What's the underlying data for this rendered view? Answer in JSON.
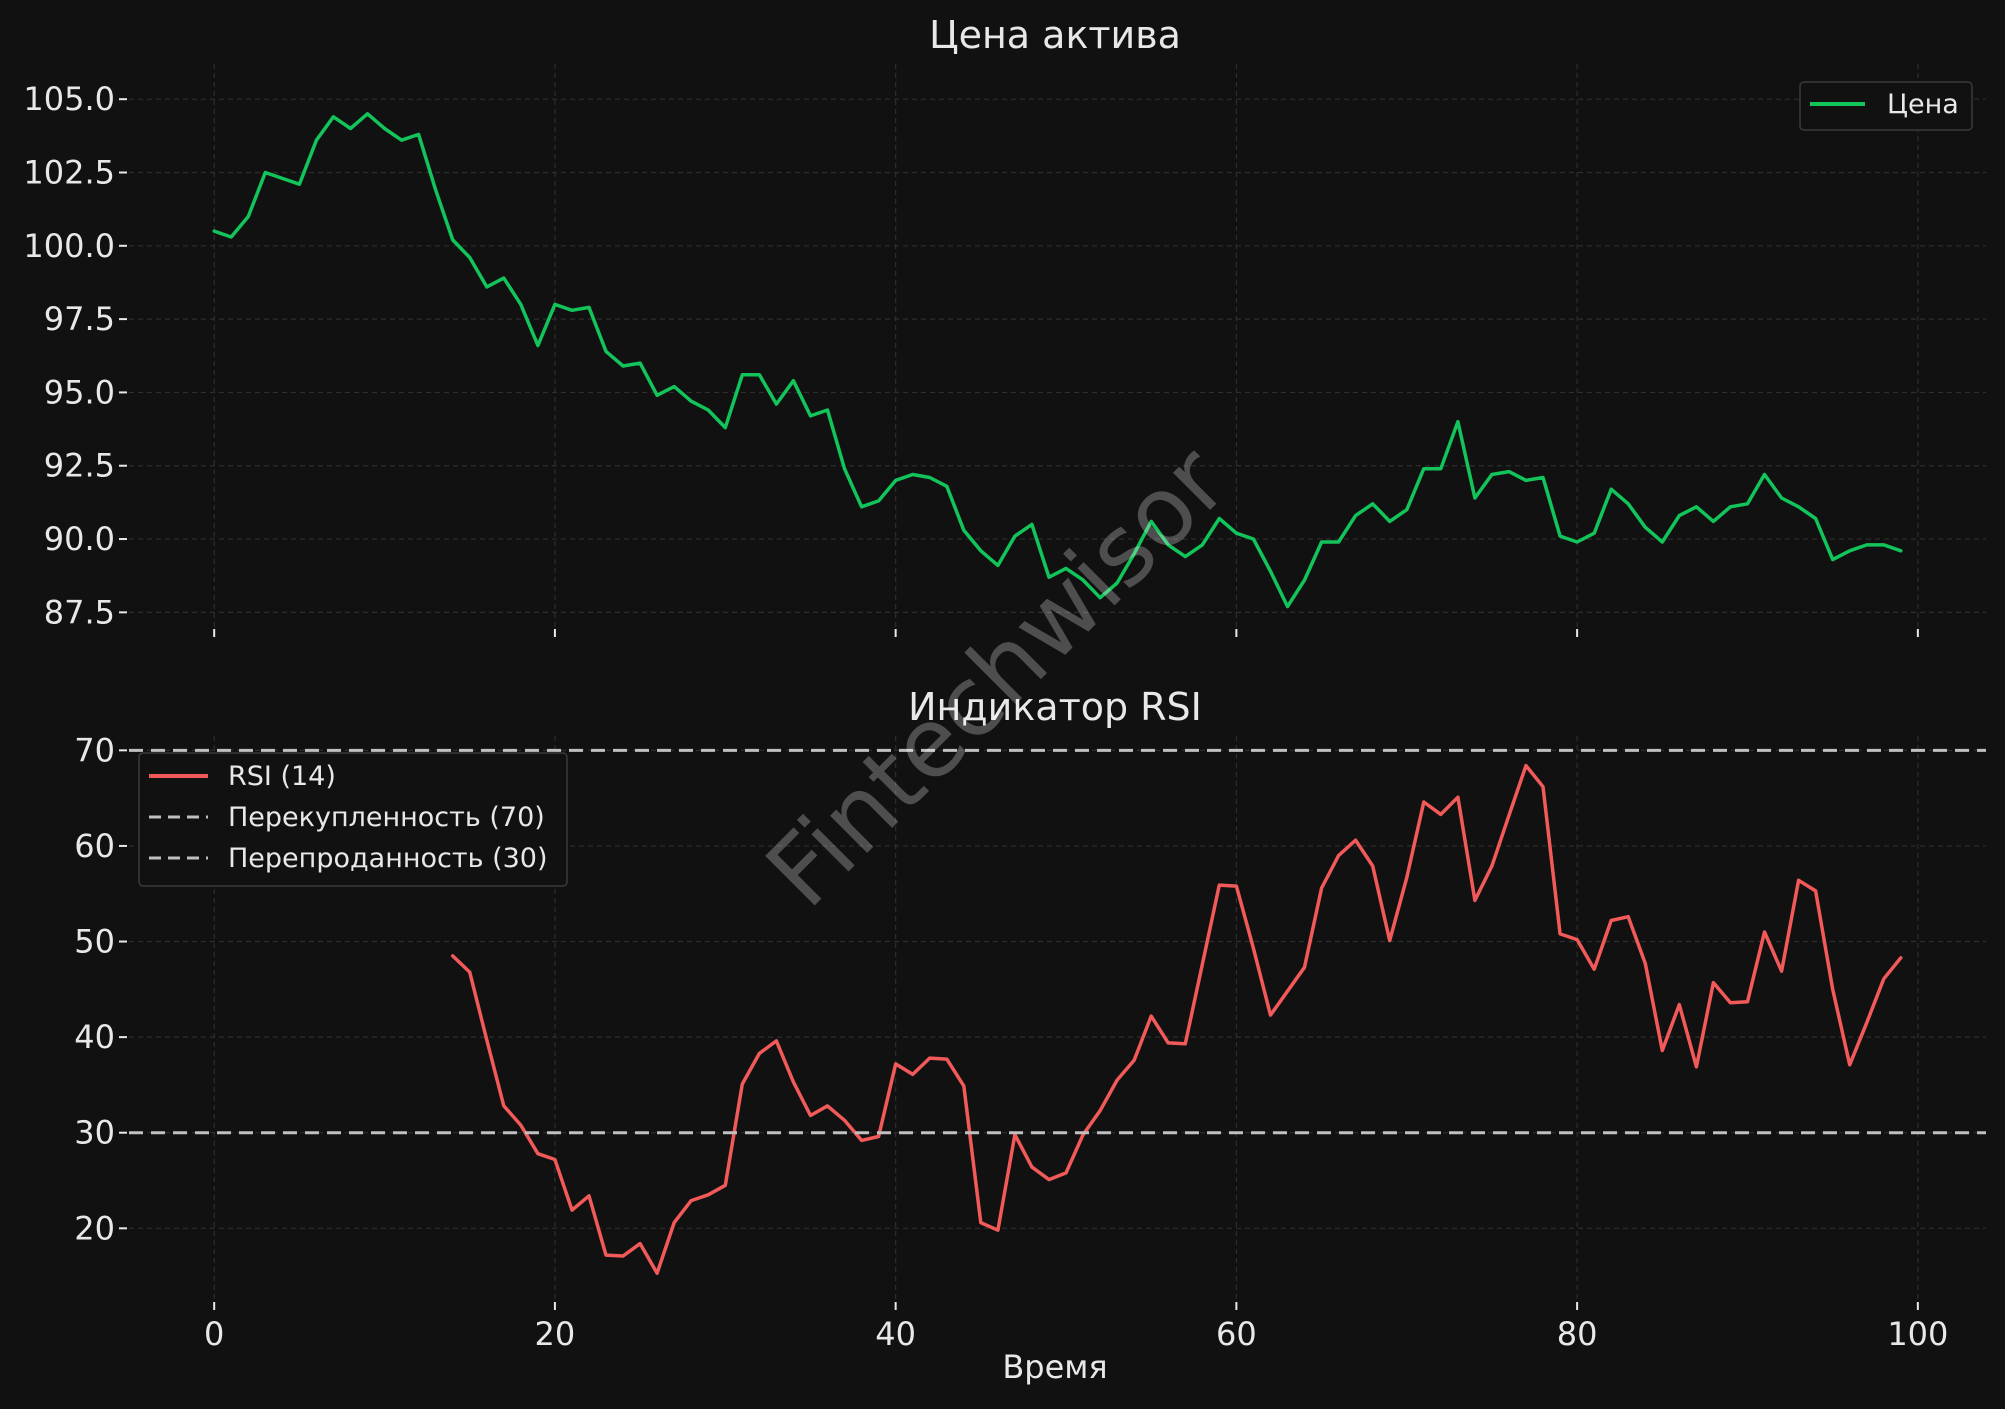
{
  "watermark": "Fintechwisor",
  "colors": {
    "background": "#111111",
    "price_line": "#12c45a",
    "rsi_line": "#f25a5a",
    "reference_line": "#c0c0c0",
    "text": "#e8e8e8",
    "grid": "#2e2e2e"
  },
  "chart_data": [
    {
      "type": "line",
      "title": "Цена актива",
      "xlabel": "",
      "ylabel": "",
      "xlim": [
        -5,
        104
      ],
      "ylim": [
        87.0,
        106.2
      ],
      "x_ticks": [
        0,
        20,
        40,
        60,
        80,
        100
      ],
      "show_x_tick_labels": false,
      "y_ticks": [
        87.5,
        90.0,
        92.5,
        95.0,
        97.5,
        100.0,
        102.5,
        105.0
      ],
      "y_tick_labels": [
        "87.5",
        "90.0",
        "92.5",
        "95.0",
        "97.5",
        "100.0",
        "102.5",
        "105.0"
      ],
      "grid": true,
      "legend": "top-right",
      "series": [
        {
          "name": "Цена",
          "color": "#12c45a",
          "x_start": 0,
          "values": [
            100.5,
            100.3,
            101.0,
            102.5,
            102.3,
            102.1,
            103.6,
            104.4,
            104.0,
            104.5,
            104.0,
            103.6,
            103.8,
            101.9,
            100.2,
            99.6,
            98.6,
            98.9,
            98.0,
            96.6,
            98.0,
            97.8,
            97.9,
            96.4,
            95.9,
            96.0,
            94.9,
            95.2,
            94.7,
            94.4,
            93.8,
            95.6,
            95.6,
            94.6,
            95.4,
            94.2,
            94.4,
            92.4,
            91.1,
            91.3,
            92.0,
            92.2,
            92.1,
            91.8,
            90.3,
            89.6,
            89.1,
            90.1,
            90.5,
            88.7,
            89.0,
            88.6,
            88.0,
            88.5,
            89.5,
            90.6,
            89.8,
            89.4,
            89.8,
            90.7,
            90.2,
            90.0,
            88.9,
            87.7,
            88.6,
            89.9,
            89.9,
            90.8,
            91.2,
            90.6,
            91.0,
            92.4,
            92.4,
            94.0,
            91.4,
            92.2,
            92.3,
            92.0,
            92.1,
            90.1,
            89.9,
            90.2,
            91.7,
            91.2,
            90.4,
            89.9,
            90.8,
            91.1,
            90.6,
            91.1,
            91.2,
            92.2,
            91.4,
            91.1,
            90.7,
            89.3,
            89.6,
            89.8,
            89.8,
            89.6
          ]
        }
      ]
    },
    {
      "type": "line",
      "title": "Индикатор RSI",
      "xlabel": "Время",
      "ylabel": "",
      "xlim": [
        -5,
        104
      ],
      "ylim": [
        12.5,
        71.5
      ],
      "x_ticks": [
        0,
        20,
        40,
        60,
        80,
        100
      ],
      "x_tick_labels": [
        "0",
        "20",
        "40",
        "60",
        "80",
        "100"
      ],
      "y_ticks": [
        20,
        30,
        40,
        50,
        60,
        70
      ],
      "y_tick_labels": [
        "20",
        "30",
        "40",
        "50",
        "60",
        "70"
      ],
      "grid": true,
      "legend": "top-left",
      "series": [
        {
          "name": "RSI (14)",
          "color": "#f25a5a",
          "x_start": 14,
          "values": [
            48.5,
            46.8,
            39.7,
            32.8,
            30.8,
            27.8,
            27.2,
            21.9,
            23.4,
            17.2,
            17.1,
            18.4,
            15.3,
            20.6,
            22.9,
            23.5,
            24.5,
            35.1,
            38.3,
            39.6,
            35.3,
            31.8,
            32.8,
            31.3,
            29.2,
            29.6,
            37.2,
            36.1,
            37.8,
            37.7,
            34.9,
            20.6,
            19.8,
            29.8,
            26.4,
            25.1,
            25.8,
            29.8,
            32.3,
            35.5,
            37.6,
            42.2,
            39.4,
            39.3,
            47.6,
            55.9,
            55.8,
            49.3,
            42.3,
            44.8,
            47.3,
            55.6,
            59.0,
            60.6,
            57.9,
            50.1,
            56.7,
            64.6,
            63.3,
            65.1,
            54.3,
            57.9,
            63.2,
            68.4,
            66.2,
            50.8,
            50.2,
            47.1,
            52.2,
            52.6,
            47.7,
            38.6,
            43.4,
            36.9,
            45.7,
            43.6,
            43.7,
            51.0,
            46.9,
            56.4,
            55.3,
            45.0,
            37.1,
            41.5,
            46.1,
            48.3
          ]
        },
        {
          "name": "Перекупленность (70)",
          "color": "#c0c0c0",
          "dashed": true,
          "constant": 70
        },
        {
          "name": "Перепроданность (30)",
          "color": "#c0c0c0",
          "dashed": true,
          "constant": 30
        }
      ]
    }
  ]
}
